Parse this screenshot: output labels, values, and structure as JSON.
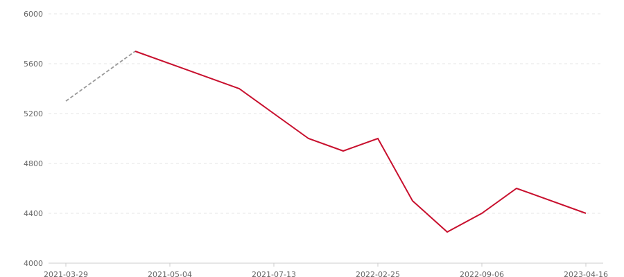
{
  "chart_data": {
    "type": "line",
    "title": "",
    "xlabel": "",
    "ylabel": "",
    "ylim": [
      4000,
      6000
    ],
    "yticks": [
      4000,
      4400,
      4800,
      5200,
      5600,
      6000
    ],
    "category_count": 16,
    "xtick_labels": [
      {
        "index": 0,
        "label": "2021-03-29"
      },
      {
        "index": 3,
        "label": "2021-05-04"
      },
      {
        "index": 6,
        "label": "2021-07-13"
      },
      {
        "index": 9,
        "label": "2022-02-25"
      },
      {
        "index": 12,
        "label": "2022-09-06"
      },
      {
        "index": 15,
        "label": "2023-04-16"
      }
    ],
    "grid": "horizontal dashed",
    "series": [
      {
        "style": "dashed",
        "color": "#999999",
        "points": [
          [
            0,
            5300
          ],
          [
            2,
            5700
          ]
        ]
      },
      {
        "style": "solid",
        "color": "#c8102e",
        "points": [
          [
            2,
            5700
          ],
          [
            5,
            5400
          ],
          [
            7,
            5000
          ],
          [
            8,
            4900
          ],
          [
            9,
            5000
          ],
          [
            10,
            4500
          ],
          [
            11,
            4250
          ],
          [
            12,
            4400
          ],
          [
            13,
            4600
          ],
          [
            15,
            4400
          ]
        ]
      }
    ]
  }
}
